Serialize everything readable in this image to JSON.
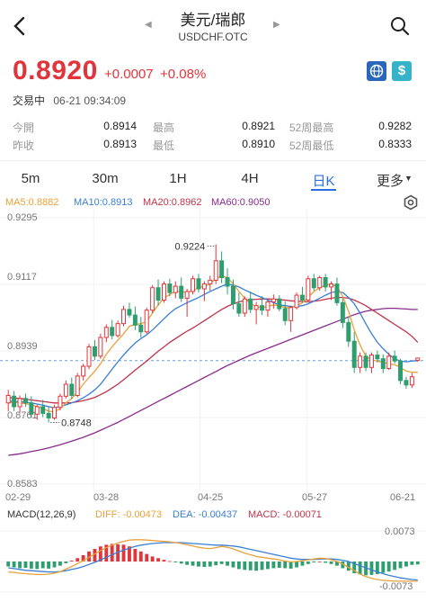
{
  "header": {
    "title": "美元/瑞郎",
    "subtitle": "USDCHF.OTC",
    "icons": {
      "back": "back-icon",
      "search": "search-icon",
      "prev": "prev-arrow-icon",
      "next": "next-arrow-icon"
    }
  },
  "quote": {
    "price": "0.8920",
    "change": "+0.0007",
    "change_pct": "+0.08%",
    "status": "交易中",
    "time": "06-21 09:34:09",
    "color_up": "#e0353b",
    "icons": [
      "globe-icon",
      "dollar-icon"
    ]
  },
  "stats": [
    {
      "label": "今開",
      "value": "0.8914"
    },
    {
      "label": "最高",
      "value": "0.8921"
    },
    {
      "label": "52周最高",
      "value": "0.9282"
    },
    {
      "label": "昨收",
      "value": "0.8913"
    },
    {
      "label": "最低",
      "value": "0.8910"
    },
    {
      "label": "52周最低",
      "value": "0.8333"
    }
  ],
  "tabs": [
    "5m",
    "30m",
    "1H",
    "4H",
    "日K",
    "更多"
  ],
  "active_tab": "日K",
  "settings_icon": "gear-icon",
  "ma_legend": {
    "ma5": "MA5:0.8882",
    "ma10": "MA10:0.8913",
    "ma20": "MA20:0.8962",
    "ma60": "MA60:0.9050",
    "colors": {
      "ma5": "#e9a13b",
      "ma10": "#3a7fd5",
      "ma20": "#c0334a",
      "ma60": "#8b2a8e"
    }
  },
  "price_axis": [
    "0.9295",
    "0.9117",
    "0.8939",
    "0.8761",
    "0.8583"
  ],
  "annotations": {
    "high": "0.9224",
    "low": "0.8748"
  },
  "date_axis": [
    "02-29",
    "03-28",
    "04-25",
    "05-27",
    "06-21"
  ],
  "macd_legend": {
    "label": "MACD(12,26,9)",
    "diff": "DIFF: -0.00473",
    "dea": "DEA: -0.00437",
    "macd": "MACD: -0.00071"
  },
  "macd_axis": {
    "top": "0.0073",
    "bottom": "-0.0073"
  },
  "chart_data": {
    "type": "candlestick",
    "ylim": [
      0.8583,
      0.9295
    ],
    "x_ticks": [
      "02-29",
      "03-28",
      "04-25",
      "05-27",
      "06-21"
    ],
    "candles": [
      [
        0.88,
        0.8835,
        0.8778,
        0.882
      ],
      [
        0.8818,
        0.8832,
        0.8778,
        0.879
      ],
      [
        0.879,
        0.882,
        0.8775,
        0.8812
      ],
      [
        0.8812,
        0.8825,
        0.879,
        0.88
      ],
      [
        0.88,
        0.8818,
        0.876,
        0.877
      ],
      [
        0.877,
        0.8795,
        0.8755,
        0.879
      ],
      [
        0.879,
        0.8808,
        0.8762,
        0.8772
      ],
      [
        0.8772,
        0.879,
        0.8748,
        0.876
      ],
      [
        0.876,
        0.8795,
        0.8755,
        0.8788
      ],
      [
        0.8788,
        0.8825,
        0.878,
        0.8818
      ],
      [
        0.8818,
        0.886,
        0.8812,
        0.885
      ],
      [
        0.885,
        0.8868,
        0.881,
        0.882
      ],
      [
        0.882,
        0.888,
        0.8815,
        0.8872
      ],
      [
        0.8872,
        0.8905,
        0.886,
        0.8898
      ],
      [
        0.8898,
        0.8958,
        0.889,
        0.895
      ],
      [
        0.895,
        0.8968,
        0.8915,
        0.8925
      ],
      [
        0.8925,
        0.8985,
        0.8918,
        0.8975
      ],
      [
        0.8975,
        0.901,
        0.8962,
        0.9002
      ],
      [
        0.9002,
        0.9022,
        0.897,
        0.898
      ],
      [
        0.898,
        0.902,
        0.8975,
        0.9012
      ],
      [
        0.9012,
        0.906,
        0.9005,
        0.905
      ],
      [
        0.905,
        0.9068,
        0.9028,
        0.9035
      ],
      [
        0.9035,
        0.9058,
        0.8995,
        0.9008
      ],
      [
        0.9008,
        0.903,
        0.8975,
        0.899
      ],
      [
        0.899,
        0.9055,
        0.8985,
        0.9048
      ],
      [
        0.9048,
        0.9115,
        0.904,
        0.9108
      ],
      [
        0.9108,
        0.913,
        0.906,
        0.9075
      ],
      [
        0.9075,
        0.9125,
        0.9068,
        0.9118
      ],
      [
        0.9118,
        0.9132,
        0.9085,
        0.9095
      ],
      [
        0.9095,
        0.9125,
        0.908,
        0.9112
      ],
      [
        0.9112,
        0.9135,
        0.907,
        0.908
      ],
      [
        0.908,
        0.9105,
        0.903,
        0.9098
      ],
      [
        0.9098,
        0.914,
        0.909,
        0.9132
      ],
      [
        0.9132,
        0.9145,
        0.9095,
        0.9105
      ],
      [
        0.9105,
        0.9125,
        0.9072,
        0.9118
      ],
      [
        0.9118,
        0.914,
        0.91,
        0.9128
      ],
      [
        0.9128,
        0.9224,
        0.9118,
        0.918
      ],
      [
        0.918,
        0.9205,
        0.912,
        0.9135
      ],
      [
        0.9135,
        0.916,
        0.909,
        0.9112
      ],
      [
        0.9112,
        0.913,
        0.905,
        0.9065
      ],
      [
        0.9065,
        0.9095,
        0.903,
        0.904
      ],
      [
        0.904,
        0.9085,
        0.903,
        0.9078
      ],
      [
        0.9078,
        0.9098,
        0.904,
        0.905
      ],
      [
        0.905,
        0.907,
        0.901,
        0.906
      ],
      [
        0.906,
        0.9085,
        0.9035,
        0.9048
      ],
      [
        0.9048,
        0.9075,
        0.903,
        0.907
      ],
      [
        0.907,
        0.909,
        0.9052,
        0.9078
      ],
      [
        0.9078,
        0.9088,
        0.9045,
        0.9052
      ],
      [
        0.9052,
        0.9072,
        0.9008,
        0.902
      ],
      [
        0.902,
        0.906,
        0.899,
        0.9055
      ],
      [
        0.9055,
        0.9095,
        0.905,
        0.9088
      ],
      [
        0.9088,
        0.911,
        0.9068,
        0.9075
      ],
      [
        0.9075,
        0.914,
        0.907,
        0.9132
      ],
      [
        0.9132,
        0.9145,
        0.91,
        0.9108
      ],
      [
        0.9108,
        0.914,
        0.91,
        0.9135
      ],
      [
        0.9135,
        0.9145,
        0.9098,
        0.911
      ],
      [
        0.911,
        0.9125,
        0.9075,
        0.9118
      ],
      [
        0.9118,
        0.9135,
        0.906,
        0.9068
      ],
      [
        0.9068,
        0.908,
        0.9,
        0.9015
      ],
      [
        0.9015,
        0.903,
        0.895,
        0.8965
      ],
      [
        0.8965,
        0.899,
        0.888,
        0.8895
      ],
      [
        0.8895,
        0.8935,
        0.888,
        0.8925
      ],
      [
        0.8925,
        0.8935,
        0.8885,
        0.8895
      ],
      [
        0.8895,
        0.8935,
        0.888,
        0.8928
      ],
      [
        0.8928,
        0.894,
        0.8908,
        0.8918
      ],
      [
        0.8918,
        0.893,
        0.888,
        0.8892
      ],
      [
        0.8892,
        0.8935,
        0.8888,
        0.8925
      ],
      [
        0.8925,
        0.894,
        0.8905,
        0.8912
      ],
      [
        0.8912,
        0.8918,
        0.885,
        0.886
      ],
      [
        0.886,
        0.887,
        0.8838,
        0.8848
      ],
      [
        0.8848,
        0.888,
        0.884,
        0.887
      ],
      [
        0.8914,
        0.8921,
        0.891,
        0.892
      ]
    ],
    "ma5": [
      0.88,
      0.8802,
      0.88,
      0.8798,
      0.8795,
      0.879,
      0.8785,
      0.8778,
      0.8776,
      0.8785,
      0.88,
      0.8812,
      0.8828,
      0.885,
      0.8868,
      0.8885,
      0.8905,
      0.893,
      0.895,
      0.8968,
      0.8985,
      0.9005,
      0.901,
      0.9012,
      0.9018,
      0.904,
      0.9062,
      0.908,
      0.909,
      0.9098,
      0.9098,
      0.9095,
      0.91,
      0.9108,
      0.9112,
      0.9118,
      0.9132,
      0.914,
      0.9135,
      0.9118,
      0.9098,
      0.908,
      0.9065,
      0.9058,
      0.9055,
      0.9058,
      0.9062,
      0.906,
      0.9055,
      0.9055,
      0.906,
      0.9068,
      0.9082,
      0.9098,
      0.9108,
      0.9115,
      0.9118,
      0.911,
      0.9085,
      0.9045,
      0.8995,
      0.8955,
      0.8925,
      0.8915,
      0.8912,
      0.8908,
      0.8905,
      0.8902,
      0.8895,
      0.8885,
      0.8882,
      0.8882
    ],
    "ma10": [
      0.8805,
      0.8804,
      0.8803,
      0.8802,
      0.88,
      0.8797,
      0.8794,
      0.879,
      0.8787,
      0.879,
      0.8795,
      0.88,
      0.8806,
      0.8814,
      0.8823,
      0.8835,
      0.885,
      0.887,
      0.889,
      0.891,
      0.8928,
      0.8945,
      0.896,
      0.8972,
      0.8982,
      0.8995,
      0.901,
      0.9025,
      0.904,
      0.9052,
      0.906,
      0.9068,
      0.9075,
      0.9082,
      0.909,
      0.9098,
      0.9105,
      0.9112,
      0.9118,
      0.9115,
      0.911,
      0.9102,
      0.9095,
      0.9088,
      0.9082,
      0.9075,
      0.9068,
      0.9062,
      0.906,
      0.9058,
      0.9058,
      0.906,
      0.9065,
      0.9072,
      0.908,
      0.9088,
      0.9095,
      0.9098,
      0.9095,
      0.9082,
      0.9065,
      0.904,
      0.9012,
      0.8985,
      0.8962,
      0.8945,
      0.893,
      0.8918,
      0.8912,
      0.891,
      0.8912,
      0.8913
    ],
    "ma20": [
      0.8815,
      0.8813,
      0.8812,
      0.881,
      0.8808,
      0.8806,
      0.8804,
      0.8802,
      0.88,
      0.88,
      0.88,
      0.8801,
      0.8803,
      0.8806,
      0.881,
      0.8815,
      0.8822,
      0.883,
      0.884,
      0.885,
      0.8862,
      0.8875,
      0.8888,
      0.89,
      0.8912,
      0.8925,
      0.8938,
      0.895,
      0.8962,
      0.8972,
      0.8982,
      0.8992,
      0.9,
      0.901,
      0.902,
      0.903,
      0.904,
      0.905,
      0.9058,
      0.9065,
      0.907,
      0.9074,
      0.9076,
      0.9077,
      0.9078,
      0.9078,
      0.9077,
      0.9076,
      0.9075,
      0.9073,
      0.9072,
      0.9071,
      0.907,
      0.9072,
      0.9074,
      0.9077,
      0.908,
      0.9082,
      0.9082,
      0.908,
      0.9075,
      0.9068,
      0.906,
      0.905,
      0.904,
      0.903,
      0.902,
      0.901,
      0.9,
      0.899,
      0.8978,
      0.8962
    ],
    "ma60": [
      0.866,
      0.8662,
      0.8664,
      0.8667,
      0.867,
      0.8673,
      0.8676,
      0.868,
      0.8684,
      0.8688,
      0.8693,
      0.8698,
      0.8703,
      0.8708,
      0.8714,
      0.872,
      0.8727,
      0.8734,
      0.8741,
      0.8748,
      0.8756,
      0.8764,
      0.8772,
      0.878,
      0.8788,
      0.8796,
      0.8804,
      0.8812,
      0.882,
      0.8828,
      0.8836,
      0.8844,
      0.8852,
      0.886,
      0.8868,
      0.8876,
      0.8884,
      0.8892,
      0.89,
      0.8907,
      0.8914,
      0.8921,
      0.8928,
      0.8934,
      0.894,
      0.8946,
      0.8952,
      0.8958,
      0.8964,
      0.897,
      0.8976,
      0.8982,
      0.8988,
      0.8994,
      0.9,
      0.9006,
      0.9012,
      0.9018,
      0.9024,
      0.903,
      0.9036,
      0.9041,
      0.9045,
      0.9048,
      0.905,
      0.9052,
      0.9053,
      0.9053,
      0.9052,
      0.9051,
      0.905,
      0.905
    ],
    "macd_ylim": [
      -0.0073,
      0.0073
    ],
    "macd_hist": [
      -0.0012,
      -0.0014,
      -0.0016,
      -0.0015,
      -0.0017,
      -0.0018,
      -0.0016,
      -0.0017,
      -0.0014,
      -0.001,
      -0.0004,
      0.0002,
      0.0008,
      0.0015,
      0.0024,
      0.003,
      0.0036,
      0.004,
      0.0042,
      0.0041,
      0.004,
      0.0036,
      0.003,
      0.0024,
      0.0018,
      0.0012,
      0.0008,
      0.0004,
      0.0001,
      -0.0002,
      -0.0005,
      -0.0008,
      -0.001,
      -0.0012,
      -0.0013,
      -0.0012,
      -0.0009,
      -0.0006,
      -0.001,
      -0.0014,
      -0.0018,
      -0.002,
      -0.0021,
      -0.0022,
      -0.002,
      -0.0018,
      -0.0016,
      -0.0015,
      -0.0016,
      -0.0017,
      -0.0014,
      -0.001,
      -0.0006,
      -0.0002,
      0.0,
      -0.0003,
      -0.0006,
      -0.001,
      -0.0016,
      -0.0022,
      -0.0028,
      -0.0031,
      -0.0033,
      -0.0032,
      -0.003,
      -0.0027,
      -0.0024,
      -0.002,
      -0.0016,
      -0.0012,
      -0.0008,
      -0.0007
    ],
    "macd_diff": [
      -0.0025,
      -0.0026,
      -0.0028,
      -0.0029,
      -0.003,
      -0.0031,
      -0.0031,
      -0.003,
      -0.0028,
      -0.0024,
      -0.0018,
      -0.0012,
      -0.0005,
      0.0002,
      0.001,
      0.0018,
      0.0026,
      0.0033,
      0.0039,
      0.0044,
      0.0048,
      0.0051,
      0.0052,
      0.0052,
      0.0051,
      0.005,
      0.0049,
      0.0048,
      0.0047,
      0.0045,
      0.0043,
      0.004,
      0.0037,
      0.0034,
      0.0032,
      0.0031,
      0.0033,
      0.0036,
      0.0034,
      0.003,
      0.0025,
      0.002,
      0.0016,
      0.0012,
      0.001,
      0.0008,
      0.0006,
      0.0004,
      0.0001,
      -0.0001,
      0.0,
      0.0002,
      0.0004,
      0.0006,
      0.0008,
      0.0007,
      0.0004,
      0.0,
      -0.0006,
      -0.0014,
      -0.0022,
      -0.003,
      -0.0036,
      -0.004,
      -0.0043,
      -0.0045,
      -0.0046,
      -0.0047,
      -0.0047,
      -0.0047,
      -0.0047,
      -0.0047
    ],
    "macd_dea": [
      -0.0015,
      -0.0017,
      -0.0019,
      -0.0021,
      -0.0022,
      -0.0023,
      -0.0024,
      -0.0025,
      -0.0025,
      -0.0024,
      -0.0022,
      -0.0019,
      -0.0016,
      -0.0012,
      -0.0007,
      -0.0002,
      0.0004,
      0.001,
      0.0016,
      0.0022,
      0.0027,
      0.0032,
      0.0036,
      0.0039,
      0.0041,
      0.0043,
      0.0044,
      0.0045,
      0.0045,
      0.0045,
      0.0045,
      0.0044,
      0.0043,
      0.0042,
      0.0041,
      0.004,
      0.0039,
      0.0039,
      0.0038,
      0.0037,
      0.0035,
      0.0032,
      0.0029,
      0.0026,
      0.0023,
      0.002,
      0.0017,
      0.0014,
      0.0011,
      0.0008,
      0.0006,
      0.0005,
      0.0005,
      0.0005,
      0.0006,
      0.0006,
      0.0006,
      0.0005,
      0.0003,
      0.0,
      -0.0005,
      -0.001,
      -0.0015,
      -0.002,
      -0.0025,
      -0.0029,
      -0.0033,
      -0.0036,
      -0.0039,
      -0.0041,
      -0.0043,
      -0.0044
    ],
    "colors": {
      "up": "#e0353b",
      "down": "#2f9e6e",
      "diff": "#e9a13b",
      "dea": "#3a7fd5",
      "ref_line": "#6a9fd8"
    },
    "reference_price": 0.8913
  }
}
